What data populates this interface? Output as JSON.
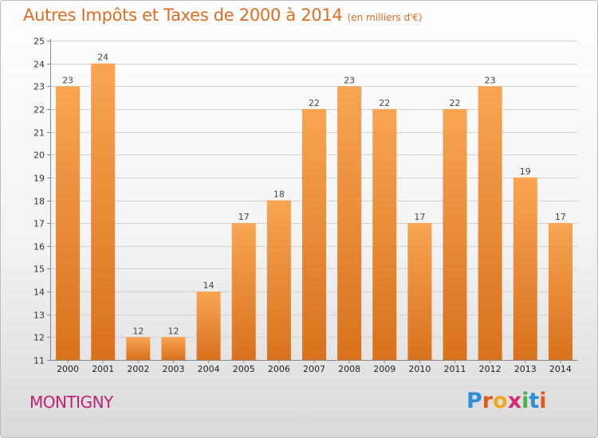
{
  "header": {
    "title": "Autres Impôts et Taxes de 2000 à 2014",
    "subtitle": "(en milliers d'€)"
  },
  "footer": {
    "commune": "MONTIGNY",
    "brand_letters": [
      "P",
      "r",
      "o",
      "x",
      "i",
      "t",
      "i"
    ],
    "brand_colors": [
      "#2a8fd6",
      "#e05a1e",
      "#f0a81e",
      "#d42a6e",
      "#4bb04a",
      "#2a8fd6",
      "#e05a1e"
    ]
  },
  "colors": {
    "bar_light": "#f8a552",
    "bar_dark": "#d9711c",
    "title": "#e06d1f",
    "commune": "#c0226e"
  },
  "chart_data": {
    "type": "bar",
    "title": "Autres Impôts et Taxes de 2000 à 2014",
    "categories": [
      "2000",
      "2001",
      "2002",
      "2003",
      "2004",
      "2005",
      "2006",
      "2007",
      "2008",
      "2009",
      "2010",
      "2011",
      "2012",
      "2013",
      "2014"
    ],
    "values": [
      23,
      24,
      12,
      12,
      14,
      17,
      18,
      22,
      23,
      22,
      17,
      22,
      23,
      19,
      17
    ],
    "ylim": [
      11,
      25
    ],
    "yticks": [
      11,
      12,
      13,
      14,
      15,
      16,
      17,
      18,
      19,
      20,
      21,
      22,
      23,
      24,
      25
    ],
    "grid": true,
    "data_labels": true
  }
}
